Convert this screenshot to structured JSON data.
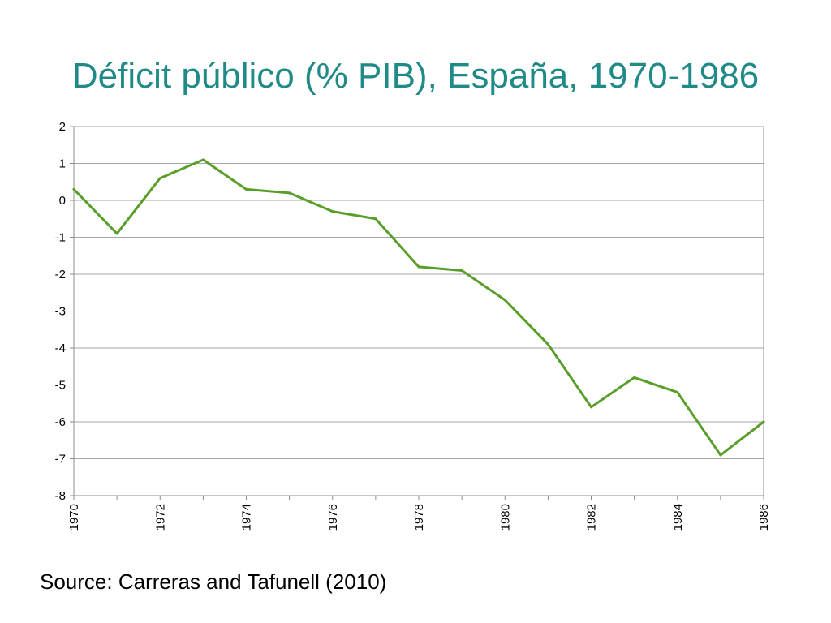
{
  "slide": {
    "title": "Déficit público (% PIB), España, 1970-1986",
    "source": "Source: Carreras and Tafunell (2010)"
  },
  "chart_data": {
    "type": "line",
    "title": "Déficit público (% PIB), España, 1970-1986",
    "xlabel": "",
    "ylabel": "",
    "x": [
      1970,
      1971,
      1972,
      1973,
      1974,
      1975,
      1976,
      1977,
      1978,
      1979,
      1980,
      1981,
      1982,
      1983,
      1984,
      1985,
      1986
    ],
    "series": [
      {
        "values": [
          0.3,
          -0.9,
          0.6,
          1.1,
          0.3,
          0.2,
          -0.3,
          -0.5,
          -1.8,
          -1.9,
          -2.7,
          -3.9,
          -5.6,
          -4.8,
          -5.2,
          -6.9,
          -6.0
        ],
        "color": "#5a9e2a"
      }
    ],
    "ylim": [
      -8,
      2
    ],
    "yticks": [
      "2",
      "1",
      "0",
      "-1",
      "-2",
      "-3",
      "-4",
      "-5",
      "-6",
      "-7",
      "-8"
    ],
    "xticks": [
      "1970",
      "1972",
      "1974",
      "1976",
      "1978",
      "1980",
      "1982",
      "1984",
      "1986"
    ],
    "grid": true,
    "legend": "none"
  },
  "colors": {
    "title": "#1f8a87",
    "line": "#5a9e2a",
    "grid": "#a6a6a6",
    "axis": "#8c8c8c"
  }
}
